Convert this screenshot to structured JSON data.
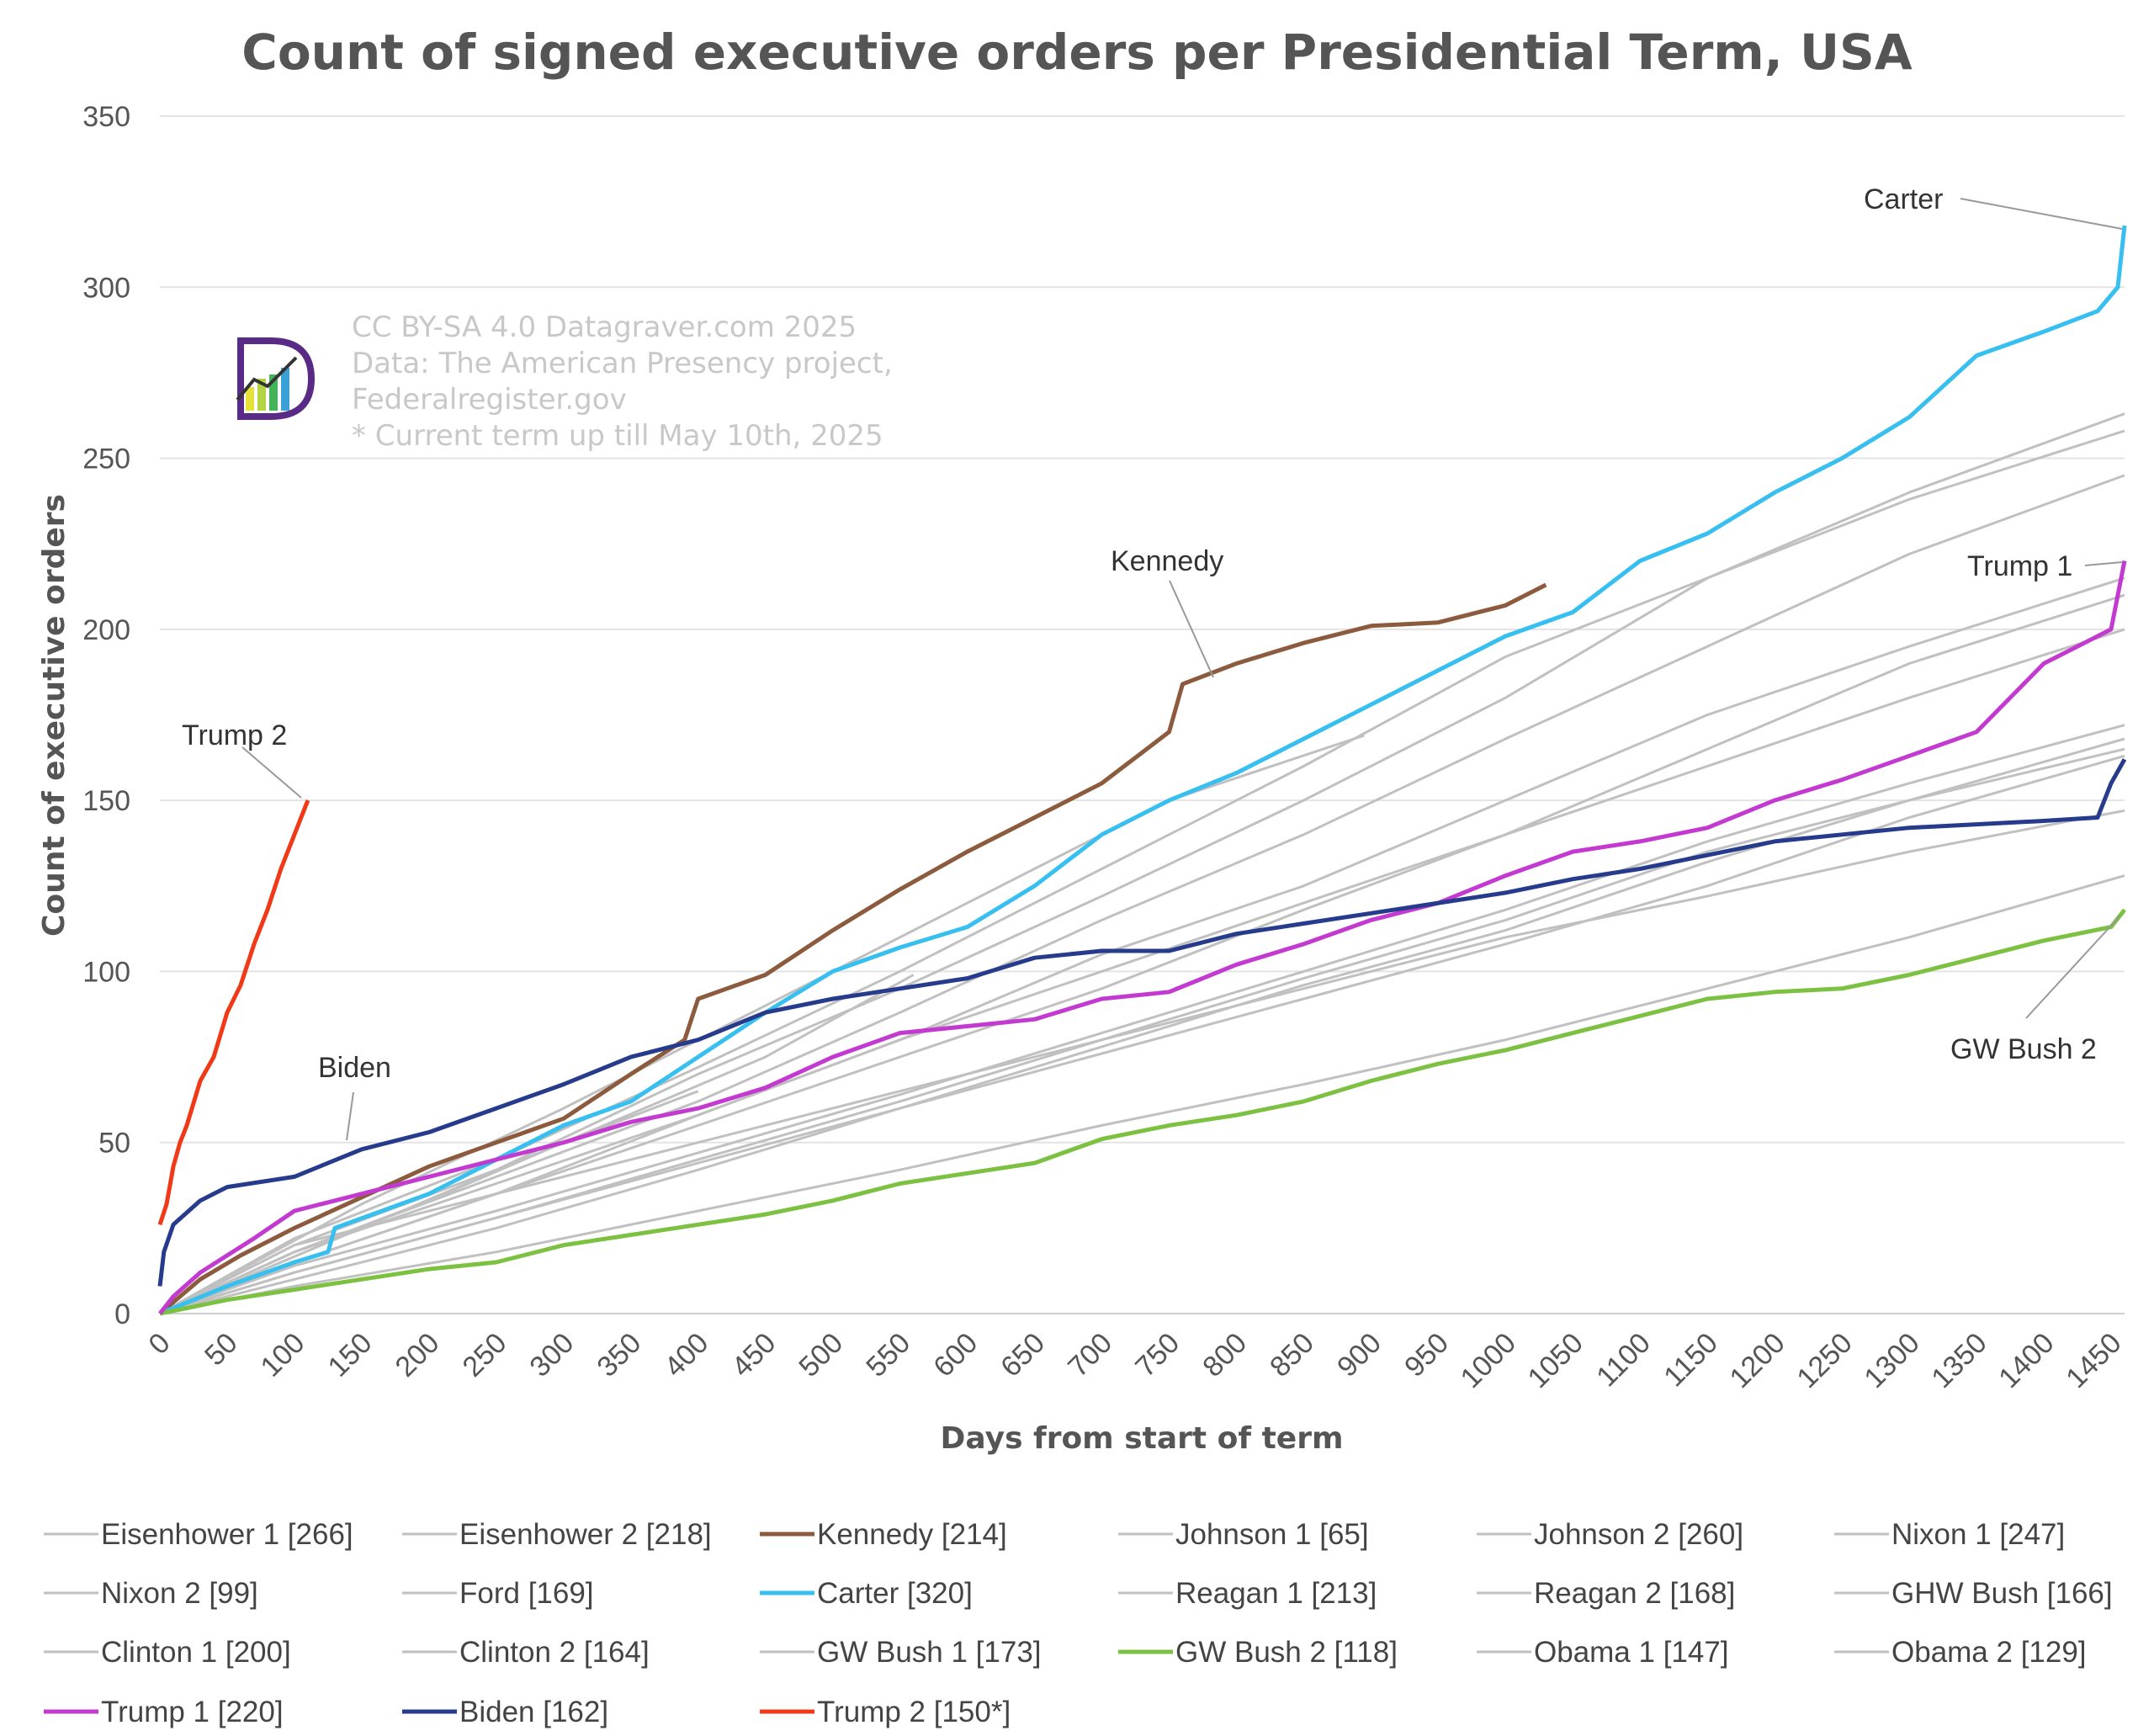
{
  "chart_data": {
    "type": "line",
    "title": "Count of signed executive orders per Presidential Term, USA",
    "xlabel": "Days from start of term",
    "ylabel": "Count of executive orders",
    "xlim": [
      0,
      1460
    ],
    "ylim": [
      0,
      350
    ],
    "xticks": [
      0,
      50,
      100,
      150,
      200,
      250,
      300,
      350,
      400,
      450,
      500,
      550,
      600,
      650,
      700,
      750,
      800,
      850,
      900,
      950,
      1000,
      1050,
      1100,
      1150,
      1200,
      1250,
      1300,
      1350,
      1400,
      1450
    ],
    "yticks": [
      0,
      50,
      100,
      150,
      200,
      250,
      300,
      350
    ],
    "grid": "horizontal",
    "legend_position": "bottom",
    "credit_lines": [
      "CC BY-SA 4.0 Datagraver.com 2025",
      "Data: The American Presency project,",
      "Federalregister.gov",
      "* Current term up till May 10th, 2025"
    ],
    "annotations": [
      {
        "text": "Carter",
        "series": "Carter"
      },
      {
        "text": "Kennedy",
        "series": "Kennedy"
      },
      {
        "text": "Trump 1",
        "series": "Trump 1"
      },
      {
        "text": "Trump 2",
        "series": "Trump 2"
      },
      {
        "text": "Biden",
        "series": "Biden"
      },
      {
        "text": "GW Bush 2",
        "series": "GW Bush 2"
      }
    ],
    "series": [
      {
        "name": "Eisenhower 1",
        "legend": "Eisenhower 1 [266]",
        "color": "#c0c0c0",
        "highlight": false,
        "x": [
          0,
          100,
          250,
          400,
          550,
          700,
          850,
          1000,
          1150,
          1300,
          1460
        ],
        "y": [
          0,
          20,
          42,
          70,
          95,
          122,
          150,
          180,
          215,
          240,
          263
        ]
      },
      {
        "name": "Eisenhower 2",
        "legend": "Eisenhower 2 [218]",
        "color": "#c0c0c0",
        "highlight": false,
        "x": [
          0,
          100,
          250,
          400,
          550,
          700,
          850,
          1000,
          1150,
          1300,
          1460
        ],
        "y": [
          0,
          15,
          35,
          58,
          80,
          105,
          125,
          150,
          175,
          195,
          215
        ]
      },
      {
        "name": "Kennedy",
        "legend": "Kennedy [214]",
        "color": "#8c5a3c",
        "highlight": true,
        "x": [
          0,
          30,
          60,
          100,
          150,
          200,
          250,
          300,
          350,
          390,
          400,
          450,
          500,
          550,
          600,
          650,
          700,
          750,
          760,
          800,
          850,
          900,
          950,
          1000,
          1020,
          1030
        ],
        "y": [
          0,
          10,
          17,
          25,
          34,
          43,
          50,
          57,
          70,
          80,
          92,
          99,
          112,
          124,
          135,
          145,
          155,
          170,
          184,
          190,
          196,
          201,
          202,
          207,
          211,
          213
        ]
      },
      {
        "name": "Johnson 1",
        "legend": "Johnson 1 [65]",
        "color": "#c0c0c0",
        "highlight": false,
        "x": [
          0,
          100,
          200,
          300,
          400
        ],
        "y": [
          0,
          18,
          33,
          50,
          65
        ]
      },
      {
        "name": "Johnson 2",
        "legend": "Johnson 2 [260]",
        "color": "#c0c0c0",
        "highlight": false,
        "x": [
          0,
          100,
          250,
          400,
          550,
          700,
          850,
          1000,
          1150,
          1300,
          1460
        ],
        "y": [
          0,
          22,
          45,
          72,
          100,
          130,
          160,
          192,
          215,
          238,
          258
        ]
      },
      {
        "name": "Nixon 1",
        "legend": "Nixon 1 [247]",
        "color": "#c0c0c0",
        "highlight": false,
        "x": [
          0,
          100,
          250,
          400,
          550,
          700,
          850,
          1000,
          1150,
          1300,
          1460
        ],
        "y": [
          0,
          18,
          40,
          62,
          88,
          115,
          140,
          168,
          195,
          222,
          245
        ]
      },
      {
        "name": "Nixon 2",
        "legend": "Nixon 2 [99]",
        "color": "#c0c0c0",
        "highlight": false,
        "x": [
          0,
          150,
          300,
          450,
          560
        ],
        "y": [
          0,
          25,
          50,
          75,
          99
        ]
      },
      {
        "name": "Ford",
        "legend": "Ford [169]",
        "color": "#c0c0c0",
        "highlight": false,
        "x": [
          0,
          150,
          300,
          450,
          600,
          750,
          895
        ],
        "y": [
          0,
          32,
          60,
          90,
          120,
          150,
          169
        ]
      },
      {
        "name": "Carter",
        "legend": "Carter [320]",
        "color": "#37bff0",
        "highlight": true,
        "x": [
          0,
          50,
          100,
          125,
          130,
          200,
          250,
          300,
          350,
          400,
          450,
          500,
          550,
          600,
          650,
          700,
          750,
          800,
          850,
          900,
          950,
          1000,
          1050,
          1100,
          1150,
          1200,
          1250,
          1300,
          1350,
          1400,
          1440,
          1455,
          1460
        ],
        "y": [
          0,
          8,
          15,
          18,
          25,
          35,
          45,
          55,
          62,
          75,
          88,
          100,
          107,
          113,
          125,
          140,
          150,
          158,
          168,
          178,
          188,
          198,
          205,
          220,
          228,
          240,
          250,
          262,
          280,
          287,
          293,
          300,
          318
        ]
      },
      {
        "name": "Reagan 1",
        "legend": "Reagan 1 [213]",
        "color": "#c0c0c0",
        "highlight": false,
        "x": [
          0,
          100,
          250,
          400,
          550,
          700,
          850,
          1000,
          1150,
          1300,
          1460
        ],
        "y": [
          0,
          18,
          38,
          58,
          80,
          100,
          120,
          140,
          165,
          190,
          210
        ]
      },
      {
        "name": "Reagan 2",
        "legend": "Reagan 2 [168]",
        "color": "#c0c0c0",
        "highlight": false,
        "x": [
          0,
          100,
          250,
          400,
          550,
          700,
          850,
          1000,
          1150,
          1300,
          1460
        ],
        "y": [
          0,
          12,
          28,
          45,
          62,
          80,
          98,
          115,
          135,
          150,
          168
        ]
      },
      {
        "name": "GHW Bush",
        "legend": "GHW Bush [166]",
        "color": "#c0c0c0",
        "highlight": false,
        "x": [
          0,
          100,
          250,
          400,
          550,
          700,
          850,
          1000,
          1150,
          1300,
          1460
        ],
        "y": [
          0,
          10,
          25,
          42,
          60,
          78,
          96,
          112,
          132,
          150,
          165
        ]
      },
      {
        "name": "Clinton 1",
        "legend": "Clinton 1 [200]",
        "color": "#c0c0c0",
        "highlight": false,
        "x": [
          0,
          100,
          250,
          400,
          550,
          700,
          850,
          1000,
          1150,
          1300,
          1460
        ],
        "y": [
          0,
          15,
          35,
          55,
          75,
          95,
          118,
          140,
          160,
          180,
          200
        ]
      },
      {
        "name": "Clinton 2",
        "legend": "Clinton 2 [164]",
        "color": "#c0c0c0",
        "highlight": false,
        "x": [
          0,
          100,
          250,
          400,
          550,
          700,
          850,
          1000,
          1150,
          1300,
          1460
        ],
        "y": [
          0,
          12,
          28,
          44,
          60,
          76,
          92,
          108,
          125,
          145,
          163
        ]
      },
      {
        "name": "GW Bush 1",
        "legend": "GW Bush 1 [173]",
        "color": "#c0c0c0",
        "highlight": false,
        "x": [
          0,
          100,
          250,
          400,
          550,
          700,
          850,
          1000,
          1150,
          1300,
          1460
        ],
        "y": [
          0,
          14,
          30,
          47,
          64,
          82,
          100,
          118,
          138,
          155,
          172
        ]
      },
      {
        "name": "GW Bush 2",
        "legend": "GW Bush 2 [118]",
        "color": "#7cc142",
        "highlight": true,
        "x": [
          0,
          50,
          100,
          150,
          200,
          250,
          300,
          350,
          400,
          450,
          500,
          550,
          600,
          650,
          700,
          750,
          800,
          850,
          900,
          950,
          1000,
          1050,
          1100,
          1150,
          1200,
          1250,
          1300,
          1350,
          1400,
          1450,
          1460
        ],
        "y": [
          0,
          4,
          7,
          10,
          13,
          15,
          20,
          23,
          26,
          29,
          33,
          38,
          41,
          44,
          51,
          55,
          58,
          62,
          68,
          73,
          77,
          82,
          87,
          92,
          94,
          95,
          99,
          104,
          109,
          113,
          118
        ]
      },
      {
        "name": "Obama 1",
        "legend": "Obama 1 [147]",
        "color": "#c0c0c0",
        "highlight": false,
        "x": [
          0,
          100,
          250,
          400,
          550,
          700,
          850,
          1000,
          1150,
          1300,
          1460
        ],
        "y": [
          0,
          20,
          35,
          50,
          65,
          80,
          95,
          110,
          122,
          135,
          147
        ]
      },
      {
        "name": "Obama 2",
        "legend": "Obama 2 [129]",
        "color": "#c0c0c0",
        "highlight": false,
        "x": [
          0,
          100,
          250,
          400,
          550,
          700,
          850,
          1000,
          1150,
          1300,
          1460
        ],
        "y": [
          0,
          8,
          18,
          30,
          42,
          55,
          67,
          80,
          95,
          110,
          128
        ]
      },
      {
        "name": "Trump 1",
        "legend": "Trump 1 [220]",
        "color": "#c33ad0",
        "highlight": true,
        "x": [
          0,
          10,
          30,
          50,
          70,
          100,
          150,
          200,
          250,
          300,
          350,
          400,
          450,
          500,
          550,
          600,
          650,
          700,
          750,
          800,
          850,
          900,
          950,
          1000,
          1050,
          1100,
          1150,
          1200,
          1250,
          1300,
          1350,
          1400,
          1450,
          1460
        ],
        "y": [
          0,
          5,
          12,
          17,
          22,
          30,
          35,
          40,
          45,
          50,
          56,
          60,
          66,
          75,
          82,
          84,
          86,
          92,
          94,
          102,
          108,
          115,
          120,
          128,
          135,
          138,
          142,
          150,
          156,
          163,
          170,
          190,
          200,
          220
        ]
      },
      {
        "name": "Biden",
        "legend": "Biden [162]",
        "color": "#263b8c",
        "highlight": true,
        "x": [
          0,
          3,
          10,
          30,
          50,
          100,
          150,
          200,
          250,
          300,
          350,
          400,
          450,
          500,
          550,
          600,
          650,
          700,
          750,
          800,
          850,
          900,
          950,
          1000,
          1050,
          1100,
          1150,
          1200,
          1250,
          1300,
          1350,
          1400,
          1440,
          1450,
          1460
        ],
        "y": [
          8,
          18,
          26,
          33,
          37,
          40,
          48,
          53,
          60,
          67,
          75,
          80,
          88,
          92,
          95,
          98,
          104,
          106,
          106,
          111,
          114,
          117,
          120,
          123,
          127,
          130,
          134,
          138,
          140,
          142,
          143,
          144,
          145,
          155,
          162
        ]
      },
      {
        "name": "Trump 2",
        "legend": "Trump 2 [150*]",
        "color": "#f03a17",
        "highlight": true,
        "x": [
          0,
          5,
          10,
          15,
          20,
          30,
          40,
          50,
          60,
          70,
          80,
          90,
          100,
          110
        ],
        "y": [
          26,
          32,
          43,
          50,
          55,
          68,
          75,
          88,
          96,
          108,
          118,
          130,
          140,
          150
        ]
      }
    ]
  }
}
